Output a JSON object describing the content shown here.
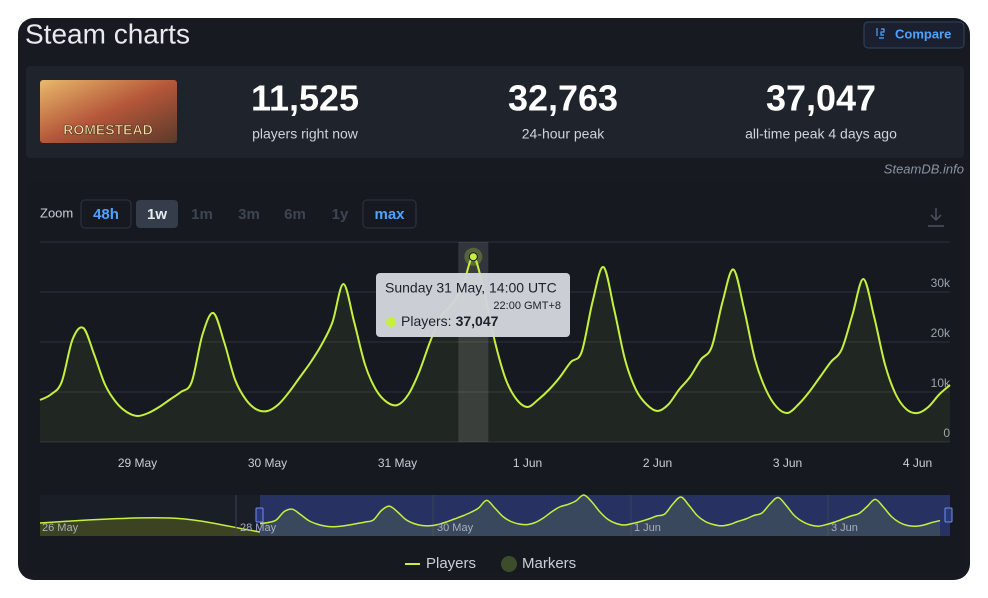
{
  "header": {
    "title": "Steam charts",
    "compare": "Compare"
  },
  "game": {
    "logo_text": "ROMESTEAD"
  },
  "stats": [
    {
      "value": "11,525",
      "label": "players right now"
    },
    {
      "value": "32,763",
      "label": "24-hour peak"
    },
    {
      "value": "37,047",
      "label": "all-time peak 4 days ago"
    }
  ],
  "credit": "SteamDB.info",
  "zoom": {
    "label": "Zoom",
    "options": [
      "48h",
      "1w",
      "1m",
      "3m",
      "6m",
      "1y",
      "max"
    ]
  },
  "chart_data": {
    "type": "line",
    "categories": [
      null,
      null,
      null,
      null,
      null,
      null,
      null,
      null,
      null,
      "29 May",
      null,
      null,
      null,
      null,
      null,
      null,
      null,
      null,
      null,
      null,
      null,
      "30 May",
      null,
      null,
      null,
      null,
      null,
      null,
      null,
      null,
      null,
      null,
      null,
      "31 May",
      null,
      null,
      null,
      null,
      null,
      null,
      null,
      null,
      null,
      null,
      null,
      "1 Jun",
      null,
      null,
      null,
      null,
      null,
      null,
      null,
      null,
      null,
      null,
      null,
      "2 Jun",
      null,
      null,
      null,
      null,
      null,
      null,
      null,
      null,
      null,
      null,
      null,
      "3 Jun",
      null,
      null,
      null,
      null,
      null,
      null,
      null,
      null,
      null,
      null,
      null,
      "4 Jun",
      null,
      null,
      null
    ],
    "series": [
      {
        "name": "Players",
        "color": "#c6f03d",
        "values": [
          8400,
          9500,
          12000,
          20500,
          22800,
          17500,
          11500,
          8000,
          6000,
          5200,
          5800,
          7000,
          8500,
          10000,
          12000,
          21500,
          25800,
          20000,
          12500,
          8500,
          6500,
          6200,
          7500,
          10000,
          13000,
          16000,
          19500,
          24000,
          31600,
          24000,
          15500,
          10500,
          8000,
          7400,
          9500,
          14000,
          20000,
          25000,
          27500,
          31000,
          37047,
          30000,
          20000,
          12500,
          8500,
          7000,
          8500,
          10500,
          13000,
          16000,
          18000,
          28000,
          35000,
          26500,
          16500,
          10500,
          7500,
          6200,
          7500,
          10500,
          13000,
          16500,
          19000,
          28000,
          34500,
          26500,
          16500,
          10500,
          7000,
          5800,
          7500,
          10000,
          13000,
          16000,
          18500,
          25500,
          32600,
          25000,
          15500,
          9500,
          6500,
          5800,
          7000,
          9500,
          11400
        ]
      }
    ],
    "markers": {
      "name": "Markers",
      "color": "#3d4d2c"
    },
    "ylim": [
      0,
      40000
    ],
    "yticks": [
      0,
      {
        "value": 10000,
        "label": "10k"
      },
      {
        "value": 20000,
        "label": "20k"
      },
      {
        "value": 30000,
        "label": "30k"
      }
    ],
    "grid": true
  },
  "tooltip": {
    "title": "Sunday 31 May, 14:00 UTC",
    "local": "22:00 GMT+8",
    "label": "Players:",
    "value": "37,047"
  },
  "navigator": {
    "labels": [
      "26 May",
      "28 May",
      "30 May",
      "1 Jun",
      "3 Jun"
    ]
  }
}
